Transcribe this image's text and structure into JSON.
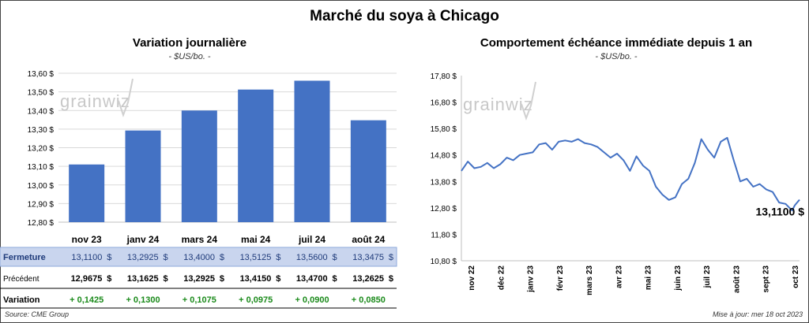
{
  "title": "Marché du soya à Chicago",
  "left": {
    "title": "Variation journalière",
    "subtitle": "- $US/bo. -",
    "watermark": "grainwiz"
  },
  "right": {
    "title": "Comportement échéance immédiate depuis 1 an",
    "subtitle": "- $US/bo. -",
    "watermark": "grainwiz",
    "last_value_label": "13,1100 $"
  },
  "table": {
    "row_labels": [
      "Fermeture",
      "Précédent",
      "Variation"
    ],
    "fermeture": [
      "13,1100",
      "13,2925",
      "13,4000",
      "13,5125",
      "13,5600",
      "13,3475"
    ],
    "precedent": [
      "12,9675",
      "13,1625",
      "13,2925",
      "13,4150",
      "13,4700",
      "13,2625"
    ],
    "variation": [
      "+ 0,1425",
      "+ 0,1300",
      "+ 0,1075",
      "+ 0,0975",
      "+ 0,0900",
      "+ 0,0850"
    ],
    "currency": "$"
  },
  "footer": {
    "source": "Source: CME Group",
    "updated": "Mise à jour: mer 18 oct 2023"
  },
  "colors": {
    "bar": "#4472c4",
    "line": "#4472c4",
    "highlight_row": "#c9d5ee",
    "positive": "#1a8a1a"
  },
  "chart_data": [
    {
      "type": "bar",
      "categories": [
        "nov 23",
        "janv 24",
        "mars 24",
        "mai 24",
        "juil 24",
        "août 24"
      ],
      "values": [
        13.11,
        13.2925,
        13.4,
        13.5125,
        13.56,
        13.3475
      ],
      "ylim": [
        12.8,
        13.6
      ],
      "yticks": [
        12.8,
        12.9,
        13.0,
        13.1,
        13.2,
        13.3,
        13.4,
        13.5,
        13.6
      ],
      "ytick_labels": [
        "12,80 $",
        "12,90 $",
        "13,00 $",
        "13,10 $",
        "13,20 $",
        "13,30 $",
        "13,40 $",
        "13,50 $",
        "13,60 $"
      ],
      "grid": true
    },
    {
      "type": "line",
      "ylim": [
        10.8,
        17.8
      ],
      "yticks": [
        10.8,
        11.8,
        12.8,
        13.8,
        14.8,
        15.8,
        16.8,
        17.8
      ],
      "ytick_labels": [
        "10,80 $",
        "11,80 $",
        "12,80 $",
        "13,80 $",
        "14,80 $",
        "15,80 $",
        "16,80 $",
        "17,80 $"
      ],
      "xtick_labels": [
        "nov 22",
        "déc 22",
        "janv 23",
        "févr 23",
        "mars 23",
        "avr 23",
        "mai 23",
        "juin 23",
        "juil 23",
        "août 23",
        "sept 23",
        "oct 23"
      ],
      "x_range": [
        "2022-10-18",
        "2023-10-18"
      ],
      "points": [
        [
          "2022-10-18",
          14.2
        ],
        [
          "2022-10-25",
          14.55
        ],
        [
          "2022-11-01",
          14.3
        ],
        [
          "2022-11-08",
          14.35
        ],
        [
          "2022-11-15",
          14.5
        ],
        [
          "2022-11-22",
          14.3
        ],
        [
          "2022-11-29",
          14.45
        ],
        [
          "2022-12-06",
          14.7
        ],
        [
          "2022-12-13",
          14.6
        ],
        [
          "2022-12-20",
          14.8
        ],
        [
          "2022-12-27",
          14.85
        ],
        [
          "2023-01-03",
          14.9
        ],
        [
          "2023-01-10",
          15.2
        ],
        [
          "2023-01-17",
          15.25
        ],
        [
          "2023-01-24",
          15.0
        ],
        [
          "2023-01-31",
          15.3
        ],
        [
          "2023-02-07",
          15.35
        ],
        [
          "2023-02-14",
          15.3
        ],
        [
          "2023-02-21",
          15.4
        ],
        [
          "2023-02-28",
          15.25
        ],
        [
          "2023-03-07",
          15.2
        ],
        [
          "2023-03-14",
          15.1
        ],
        [
          "2023-03-21",
          14.9
        ],
        [
          "2023-03-28",
          14.7
        ],
        [
          "2023-04-04",
          14.85
        ],
        [
          "2023-04-11",
          14.6
        ],
        [
          "2023-04-18",
          14.2
        ],
        [
          "2023-04-25",
          14.75
        ],
        [
          "2023-05-02",
          14.4
        ],
        [
          "2023-05-09",
          14.2
        ],
        [
          "2023-05-16",
          13.6
        ],
        [
          "2023-05-23",
          13.3
        ],
        [
          "2023-05-30",
          13.1
        ],
        [
          "2023-06-06",
          13.2
        ],
        [
          "2023-06-13",
          13.7
        ],
        [
          "2023-06-20",
          13.9
        ],
        [
          "2023-06-27",
          14.5
        ],
        [
          "2023-07-04",
          15.4
        ],
        [
          "2023-07-11",
          15.0
        ],
        [
          "2023-07-18",
          14.7
        ],
        [
          "2023-07-25",
          15.3
        ],
        [
          "2023-08-01",
          15.45
        ],
        [
          "2023-08-08",
          14.6
        ],
        [
          "2023-08-15",
          13.8
        ],
        [
          "2023-08-22",
          13.9
        ],
        [
          "2023-08-29",
          13.6
        ],
        [
          "2023-09-05",
          13.7
        ],
        [
          "2023-09-12",
          13.5
        ],
        [
          "2023-09-19",
          13.4
        ],
        [
          "2023-09-26",
          13.0
        ],
        [
          "2023-10-03",
          12.95
        ],
        [
          "2023-10-10",
          12.7
        ],
        [
          "2023-10-13",
          12.9
        ],
        [
          "2023-10-18",
          13.11
        ]
      ]
    }
  ]
}
